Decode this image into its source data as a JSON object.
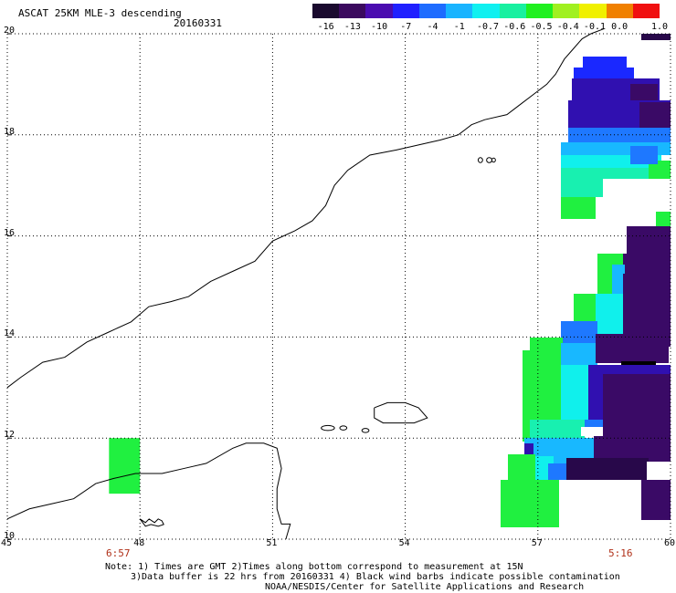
{
  "header": {
    "title": "ASCAT 25KM MLE-3 descending",
    "date": "20160331"
  },
  "colorbar": {
    "ticks": [
      "-16",
      "-13",
      "-10",
      "-7",
      "-4",
      "-1",
      "-0.7",
      "-0.6",
      "-0.5",
      "-0.4",
      "-0.1",
      "0.0",
      "1.0"
    ],
    "colors": [
      "#1a0a2e",
      "#3b0a5e",
      "#4a0cb0",
      "#2020ff",
      "#1e6cff",
      "#19b4ff",
      "#10f0f0",
      "#18f0a0",
      "#20f020",
      "#a0f020",
      "#f0f000",
      "#f08000",
      "#f01010"
    ]
  },
  "axes": {
    "x_ticks": [
      "45",
      "48",
      "51",
      "54",
      "57",
      "60"
    ],
    "y_ticks": [
      "20",
      "18",
      "16",
      "14",
      "12",
      "10"
    ],
    "x_range": [
      45,
      60
    ],
    "y_range": [
      10,
      20
    ]
  },
  "pass_times": {
    "left": "6:57",
    "right": "5:16"
  },
  "notes": {
    "line1": "Note: 1) Times are GMT 2)Times along bottom correspond to measurement at 15N",
    "line2": "3)Data buffer is 22 hrs from 20160331 4) Black wind barbs indicate possible contamination",
    "line3": "NOAA/NESDIS/Center for Satellite Applications and Research"
  },
  "palette": {
    "dark": "#3a0a66",
    "darker": "#28084a",
    "black": "#000000",
    "indigo": "#3010b0",
    "blue": "#1a28ff",
    "azure": "#1e78ff",
    "sky": "#18b8ff",
    "cyan": "#10f0ec",
    "teal": "#18f0b0",
    "green": "#20f040"
  }
}
